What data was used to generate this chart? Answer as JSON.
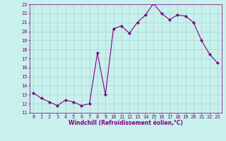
{
  "x": [
    0,
    1,
    2,
    3,
    4,
    5,
    6,
    7,
    8,
    9,
    10,
    11,
    12,
    13,
    14,
    15,
    16,
    17,
    18,
    19,
    20,
    21,
    22,
    23
  ],
  "y": [
    13.2,
    12.6,
    12.2,
    11.8,
    12.4,
    12.2,
    11.8,
    12.0,
    17.6,
    13.0,
    20.3,
    20.6,
    19.8,
    21.0,
    21.8,
    23.1,
    22.0,
    21.3,
    21.8,
    21.7,
    21.0,
    19.0,
    17.5,
    16.5
  ],
  "line_color": "#800080",
  "marker": "D",
  "marker_size": 2,
  "bg_color": "#c8f0ec",
  "grid_color": "#a0d8d4",
  "ylim": [
    11,
    23
  ],
  "xlim": [
    -0.5,
    23.5
  ],
  "yticks": [
    11,
    12,
    13,
    14,
    15,
    16,
    17,
    18,
    19,
    20,
    21,
    22,
    23
  ],
  "xticks": [
    0,
    1,
    2,
    3,
    4,
    5,
    6,
    7,
    8,
    9,
    10,
    11,
    12,
    13,
    14,
    15,
    16,
    17,
    18,
    19,
    20,
    21,
    22,
    23
  ],
  "xlabel": "Windchill (Refroidissement éolien,°C)",
  "xlabel_color": "#800080",
  "tick_color": "#800080",
  "axis_color": "#800080",
  "linewidth": 0.8,
  "tick_fontsize": 5,
  "xlabel_fontsize": 5.5
}
